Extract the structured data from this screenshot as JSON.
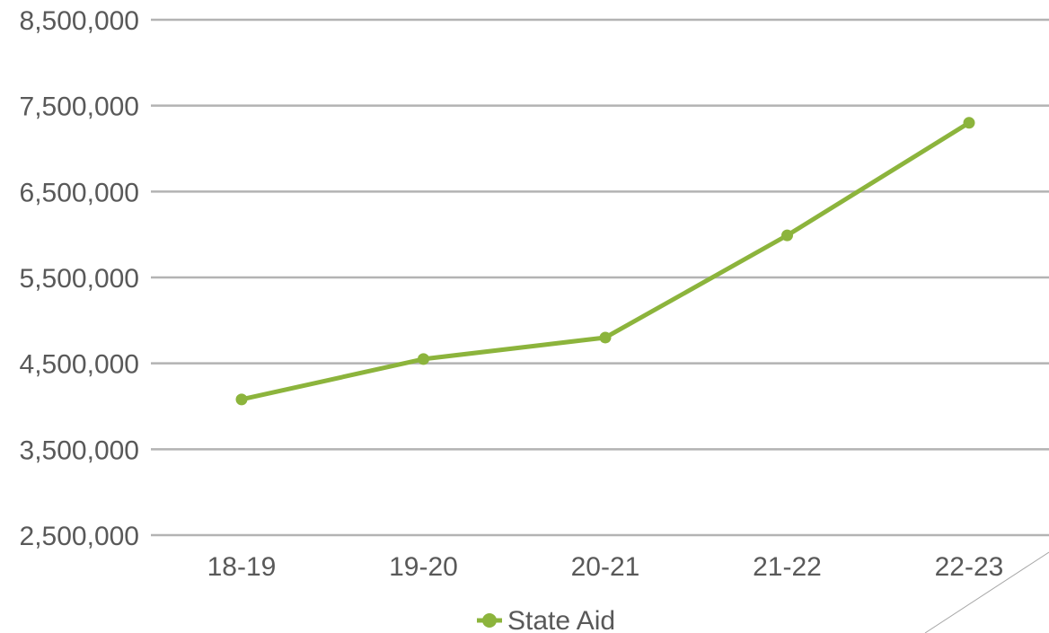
{
  "chart_data": {
    "type": "line",
    "categories": [
      "18-19",
      "19-20",
      "20-21",
      "21-22",
      "22-23"
    ],
    "series": [
      {
        "name": "State Aid",
        "color": "#8cb43c",
        "values": [
          4080000,
          4550000,
          4800000,
          5990000,
          7300000
        ]
      }
    ],
    "ylim": [
      2500000,
      8500000
    ],
    "y_ticks": [
      "2,500,000",
      "3,500,000",
      "4,500,000",
      "5,500,000",
      "6,500,000",
      "7,500,000",
      "8,500,000"
    ],
    "y_tick_values": [
      2500000,
      3500000,
      4500000,
      5500000,
      6500000,
      7500000,
      8500000
    ],
    "grid": true,
    "legend": "bottom",
    "gridline_color": "#b3b3b3"
  }
}
